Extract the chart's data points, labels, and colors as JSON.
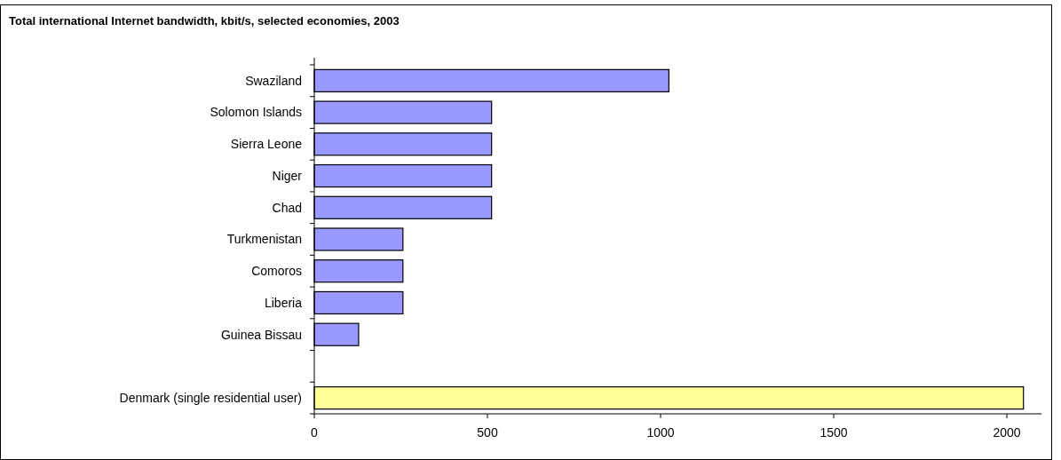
{
  "chart_data": {
    "type": "bar",
    "orientation": "horizontal",
    "title": "Total international Internet bandwidth, kbit/s, selected economies, 2003",
    "categories": [
      "Swaziland",
      "Solomon Islands",
      "Sierra Leone",
      "Niger",
      "Chad",
      "Turkmenistan",
      "Comoros",
      "Liberia",
      "Guinea Bissau",
      null,
      "Denmark (single residential user)"
    ],
    "values": [
      1024,
      512,
      512,
      512,
      512,
      256,
      256,
      256,
      128,
      null,
      2048
    ],
    "colors": [
      "#9999ff",
      "#9999ff",
      "#9999ff",
      "#9999ff",
      "#9999ff",
      "#9999ff",
      "#9999ff",
      "#9999ff",
      "#9999ff",
      null,
      "#ffff99"
    ],
    "xlim": [
      0,
      2100
    ],
    "xticks": [
      0,
      500,
      1000,
      1500,
      2000
    ],
    "grid": false
  }
}
